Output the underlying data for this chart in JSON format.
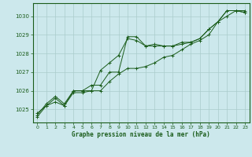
{
  "title": "Graphe pression niveau de la mer (hPa)",
  "bg_color": "#cce8ec",
  "line_color": "#1a5c1a",
  "grid_color": "#aacccc",
  "xlim": [
    -0.5,
    23.5
  ],
  "ylim": [
    1024.3,
    1030.7
  ],
  "yticks": [
    1025,
    1026,
    1027,
    1028,
    1029,
    1030
  ],
  "xticks": [
    0,
    1,
    2,
    3,
    4,
    5,
    6,
    7,
    8,
    9,
    10,
    11,
    12,
    13,
    14,
    15,
    16,
    17,
    18,
    19,
    20,
    21,
    22,
    23
  ],
  "series1_x": [
    0,
    1,
    2,
    3,
    4,
    5,
    6,
    7,
    8,
    9,
    10,
    11,
    12,
    13,
    14,
    15,
    16,
    17,
    18,
    19,
    20,
    21,
    22,
    23
  ],
  "series1_y": [
    1024.8,
    1025.2,
    1025.4,
    1025.2,
    1026.0,
    1026.0,
    1026.0,
    1026.0,
    1026.5,
    1026.9,
    1027.2,
    1027.2,
    1027.3,
    1027.5,
    1027.8,
    1027.9,
    1028.2,
    1028.5,
    1028.7,
    1029.0,
    1029.7,
    1030.0,
    1030.3,
    1030.2
  ],
  "series2_x": [
    0,
    1,
    2,
    3,
    4,
    5,
    6,
    7,
    8,
    9,
    10,
    11,
    12,
    13,
    14,
    15,
    16,
    17,
    18,
    19,
    20,
    21,
    22,
    23
  ],
  "series2_y": [
    1024.7,
    1025.3,
    1025.7,
    1025.3,
    1026.0,
    1026.0,
    1026.3,
    1026.3,
    1027.0,
    1027.0,
    1028.9,
    1028.9,
    1028.4,
    1028.4,
    1028.4,
    1028.4,
    1028.6,
    1028.6,
    1028.8,
    1029.3,
    1029.7,
    1030.3,
    1030.3,
    1030.3
  ],
  "series3_x": [
    0,
    1,
    2,
    3,
    4,
    5,
    6,
    7,
    8,
    9,
    10,
    11,
    12,
    13,
    14,
    15,
    16,
    17,
    18,
    19,
    20,
    21,
    22,
    23
  ],
  "series3_y": [
    1024.6,
    1025.2,
    1025.6,
    1025.2,
    1025.9,
    1025.9,
    1026.0,
    1027.1,
    1027.5,
    1027.9,
    1028.8,
    1028.7,
    1028.4,
    1028.5,
    1028.4,
    1028.4,
    1028.5,
    1028.6,
    1028.8,
    1029.3,
    1029.7,
    1030.3,
    1030.3,
    1030.2
  ]
}
